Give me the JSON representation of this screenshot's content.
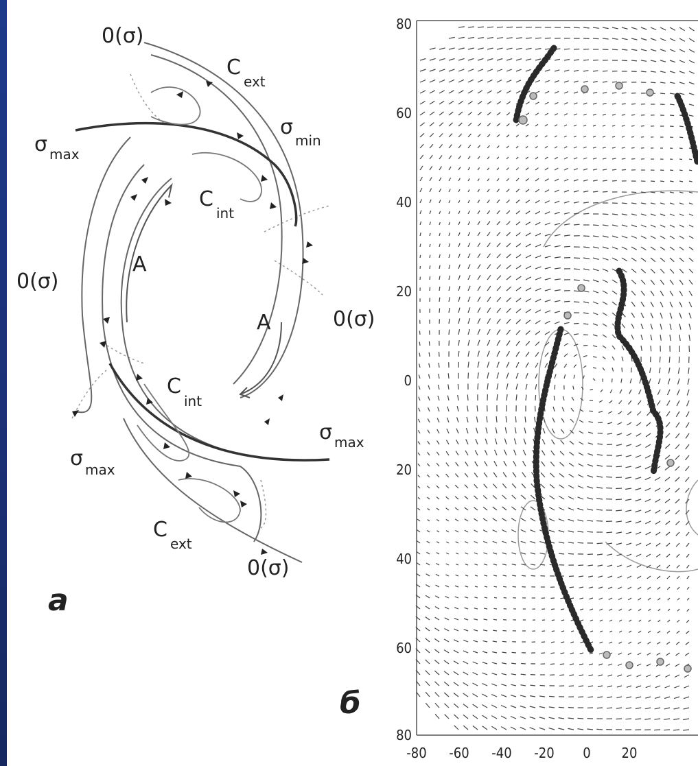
{
  "panel_a": {
    "letter": "a",
    "labels": {
      "o_sigma": "0(σ)",
      "sigma": "σ",
      "max": "max",
      "min": "min",
      "c": "C",
      "ext": "ext",
      "int": "int",
      "a": "A"
    }
  },
  "panel_b": {
    "letter": "б",
    "y_ticks": [
      "80",
      "60",
      "40",
      "20",
      "0",
      "20",
      "40",
      "60",
      "80"
    ],
    "x_ticks": [
      "-80",
      "-60",
      "-40",
      "-20",
      "0",
      "20"
    ]
  },
  "colors": {
    "background": "#1c3a8a",
    "ink": "#222222",
    "grey_ink": "#888888"
  }
}
